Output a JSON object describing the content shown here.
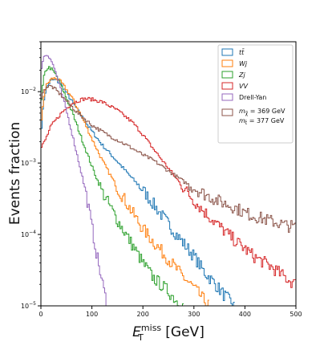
{
  "chart_data": {
    "type": "line",
    "style": "step-histogram",
    "xlabel_main": "E",
    "xlabel_sub": "T",
    "xlabel_sup": "miss",
    "xlabel_unit": "[GeV]",
    "ylabel": "Events fraction",
    "xlim": [
      0,
      500
    ],
    "ylim": [
      1e-05,
      0.05
    ],
    "yscale": "log",
    "grid": false,
    "legend_position": "top-right",
    "x_ticks": [
      0,
      100,
      200,
      300,
      400,
      500
    ],
    "y_ticks": [
      {
        "value": 1e-05,
        "base": "10",
        "exp": "−5"
      },
      {
        "value": 0.0001,
        "base": "10",
        "exp": "−4"
      },
      {
        "value": 0.001,
        "base": "10",
        "exp": "−3"
      },
      {
        "value": 0.01,
        "base": "10",
        "exp": "−2"
      }
    ],
    "series": [
      {
        "name": "tt̄",
        "color": "#1f77b4",
        "points": [
          [
            0,
            0.0025
          ],
          [
            5,
            0.007
          ],
          [
            10,
            0.011
          ],
          [
            20,
            0.0145
          ],
          [
            30,
            0.0145
          ],
          [
            40,
            0.0125
          ],
          [
            60,
            0.0075
          ],
          [
            80,
            0.0045
          ],
          [
            100,
            0.0028
          ],
          [
            120,
            0.0018
          ],
          [
            150,
            0.00105
          ],
          [
            180,
            0.0006
          ],
          [
            200,
            0.00042
          ],
          [
            220,
            0.00027
          ],
          [
            250,
            0.00014
          ],
          [
            280,
            7.5e-05
          ],
          [
            300,
            5e-05
          ],
          [
            320,
            3e-05
          ],
          [
            340,
            2.1e-05
          ],
          [
            360,
            1.4e-05
          ],
          [
            380,
            1e-05
          ]
        ]
      },
      {
        "name": "Wj",
        "color": "#ff7f0e",
        "points": [
          [
            0,
            0.003
          ],
          [
            5,
            0.008
          ],
          [
            10,
            0.012
          ],
          [
            20,
            0.015
          ],
          [
            30,
            0.0155
          ],
          [
            40,
            0.0135
          ],
          [
            60,
            0.0085
          ],
          [
            80,
            0.0045
          ],
          [
            100,
            0.0022
          ],
          [
            120,
            0.0011
          ],
          [
            150,
            0.00045
          ],
          [
            180,
            0.0002
          ],
          [
            200,
            0.00012
          ],
          [
            220,
            8e-05
          ],
          [
            250,
            4.5e-05
          ],
          [
            280,
            2.5e-05
          ],
          [
            300,
            1.8e-05
          ],
          [
            320,
            1.2e-05
          ],
          [
            330,
            1e-05
          ]
        ]
      },
      {
        "name": "Zj",
        "color": "#2ca02c",
        "points": [
          [
            0,
            0.006
          ],
          [
            5,
            0.015
          ],
          [
            10,
            0.02
          ],
          [
            15,
            0.022
          ],
          [
            20,
            0.021
          ],
          [
            30,
            0.017
          ],
          [
            40,
            0.012
          ],
          [
            60,
            0.0055
          ],
          [
            80,
            0.0022
          ],
          [
            100,
            0.0009
          ],
          [
            120,
            0.0004
          ],
          [
            150,
            0.00016
          ],
          [
            180,
            7e-05
          ],
          [
            200,
            4e-05
          ],
          [
            220,
            2.5e-05
          ],
          [
            250,
            1.6e-05
          ],
          [
            270,
            1.1e-05
          ],
          [
            280,
            1e-05
          ]
        ]
      },
      {
        "name": "VV",
        "color": "#d62728",
        "points": [
          [
            0,
            0.0016
          ],
          [
            10,
            0.0022
          ],
          [
            20,
            0.0033
          ],
          [
            40,
            0.005
          ],
          [
            60,
            0.0068
          ],
          [
            80,
            0.0078
          ],
          [
            90,
            0.008
          ],
          [
            100,
            0.0078
          ],
          [
            120,
            0.0072
          ],
          [
            150,
            0.0055
          ],
          [
            180,
            0.0037
          ],
          [
            200,
            0.0025
          ],
          [
            220,
            0.0016
          ],
          [
            250,
            0.00085
          ],
          [
            280,
            0.00045
          ],
          [
            300,
            0.0003
          ],
          [
            320,
            0.00021
          ],
          [
            350,
            0.00013
          ],
          [
            380,
            8.3e-05
          ],
          [
            400,
            6.3e-05
          ],
          [
            420,
            4.8e-05
          ],
          [
            450,
            3.6e-05
          ],
          [
            470,
            2.8e-05
          ],
          [
            490,
            2.2e-05
          ],
          [
            500,
            2e-05
          ]
        ]
      },
      {
        "name": "Drell-Yan",
        "color": "#9467bd",
        "points": [
          [
            0,
            0.02
          ],
          [
            5,
            0.03
          ],
          [
            10,
            0.033
          ],
          [
            15,
            0.032
          ],
          [
            20,
            0.028
          ],
          [
            30,
            0.018
          ],
          [
            40,
            0.01
          ],
          [
            50,
            0.0055
          ],
          [
            60,
            0.0028
          ],
          [
            70,
            0.0014
          ],
          [
            80,
            0.0007
          ],
          [
            90,
            0.00033
          ],
          [
            100,
            0.00013
          ],
          [
            110,
            5e-05
          ],
          [
            120,
            2.2e-05
          ],
          [
            130,
            1e-05
          ]
        ]
      },
      {
        "name_line1": "m = 369 GeV",
        "name_line2": "m = 377 GeV",
        "label_1_base": "m",
        "label_1_sub": "χ̃",
        "label_1_rest": " = 369 GeV",
        "label_2_base": "m",
        "label_2_sub": "t̃",
        "label_2_rest": " = 377 GeV",
        "color": "#8c564b",
        "points": [
          [
            0,
            0.008
          ],
          [
            5,
            0.01
          ],
          [
            10,
            0.0115
          ],
          [
            20,
            0.012
          ],
          [
            30,
            0.0105
          ],
          [
            50,
            0.0075
          ],
          [
            70,
            0.0052
          ],
          [
            100,
            0.0034
          ],
          [
            130,
            0.0025
          ],
          [
            150,
            0.0021
          ],
          [
            180,
            0.0016
          ],
          [
            200,
            0.0013
          ],
          [
            220,
            0.0011
          ],
          [
            250,
            0.00078
          ],
          [
            280,
            0.00055
          ],
          [
            300,
            0.00045
          ],
          [
            320,
            0.00037
          ],
          [
            350,
            0.00029
          ],
          [
            380,
            0.00024
          ],
          [
            400,
            0.0002
          ],
          [
            430,
            0.00017
          ],
          [
            450,
            0.000155
          ],
          [
            480,
            0.000135
          ],
          [
            500,
            0.000125
          ]
        ]
      }
    ]
  }
}
